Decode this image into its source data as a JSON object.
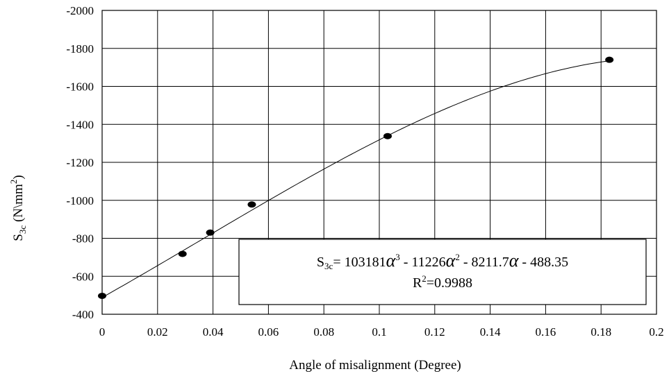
{
  "chart_data": {
    "type": "scatter",
    "xlabel": "Angle of misalignment (Degree)",
    "ylabel": {
      "base": "S",
      "sub": "3c",
      "text": " (N\\mm",
      "sup": "2",
      "close": ")"
    },
    "xlim": [
      0,
      0.2
    ],
    "ylim": [
      -400,
      -2000
    ],
    "x_ticks": [
      0,
      0.02,
      0.04,
      0.06,
      0.08,
      0.1,
      0.12,
      0.14,
      0.16,
      0.18,
      0.2
    ],
    "x_tick_labels": [
      "0",
      "0.02",
      "0.04",
      "0.06",
      "0.08",
      "0.1",
      "0.12",
      "0.14",
      "0.16",
      "0.18",
      "0.2"
    ],
    "y_ticks": [
      -2000,
      -1800,
      -1600,
      -1400,
      -1200,
      -1000,
      -800,
      -600,
      -400
    ],
    "y_tick_labels": [
      "-2000",
      "-1800",
      "-1600",
      "-1400",
      "-1200",
      "-1000",
      "-800",
      "-600",
      "-400"
    ],
    "grid": true,
    "series": [
      {
        "points": [
          {
            "x": 0.0,
            "y": -497
          },
          {
            "x": 0.029,
            "y": -718
          },
          {
            "x": 0.039,
            "y": -830
          },
          {
            "x": 0.054,
            "y": -978
          },
          {
            "x": 0.103,
            "y": -1338
          },
          {
            "x": 0.183,
            "y": -1740
          }
        ],
        "marker_color": "#000000"
      }
    ],
    "trendline": {
      "type": "polynomial",
      "order": 3,
      "coefficients": [
        103181,
        -11226,
        -8211.7,
        -488.35
      ],
      "x_range": [
        0,
        0.183
      ],
      "color": "#000000"
    },
    "annotation": {
      "line1_prefix": "S",
      "line1_sub": "3c",
      "line1_parts": [
        "= 103181",
        " - 11226",
        " - 8211.7",
        " - 488.35"
      ],
      "alpha": "α",
      "exp3": "3",
      "exp2": "2",
      "line2_prefix": "R",
      "line2_sup": "2",
      "line2_value": "=0.9988"
    }
  }
}
